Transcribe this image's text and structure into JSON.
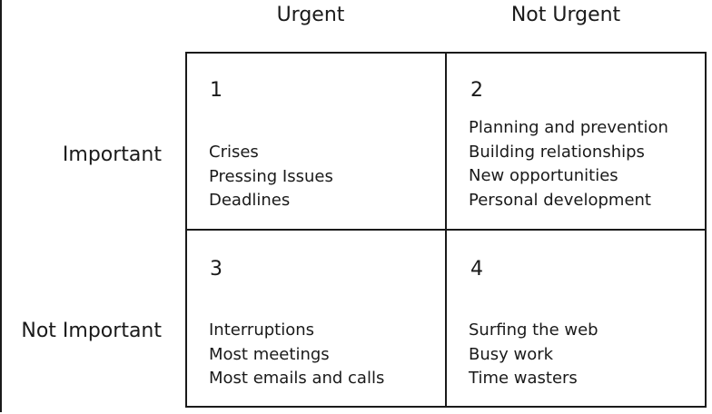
{
  "columns": {
    "urgent": "Urgent",
    "not_urgent": "Not Urgent"
  },
  "rows": {
    "important": "Important",
    "not_important": "Not Important"
  },
  "quadrants": [
    {
      "number": "1",
      "items": [
        "Crises",
        "Pressing Issues",
        "Deadlines"
      ]
    },
    {
      "number": "2",
      "items": [
        "Planning and prevention",
        "Building relationships",
        "New opportunities",
        "Personal development"
      ]
    },
    {
      "number": "3",
      "items": [
        "Interruptions",
        "Most meetings",
        "Most emails and calls"
      ]
    },
    {
      "number": "4",
      "items": [
        "Surfing the web",
        "Busy work",
        "Time wasters"
      ]
    }
  ]
}
